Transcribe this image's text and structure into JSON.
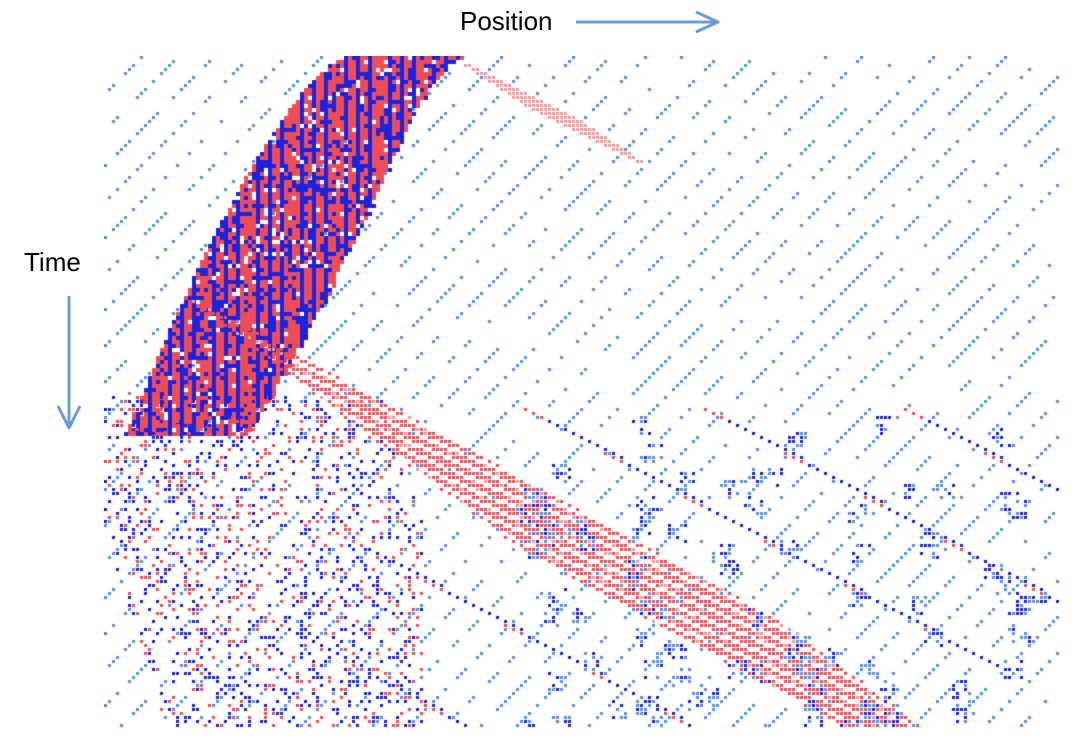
{
  "labels": {
    "position": "Position",
    "time": "Time"
  },
  "colors": {
    "red": "#ee4d55",
    "blue": "#1a23e0",
    "light_blue": "#5a8fe6",
    "pink": "#f29aa0",
    "arrow": "#6f9bd4",
    "background": "#ffffff"
  }
}
